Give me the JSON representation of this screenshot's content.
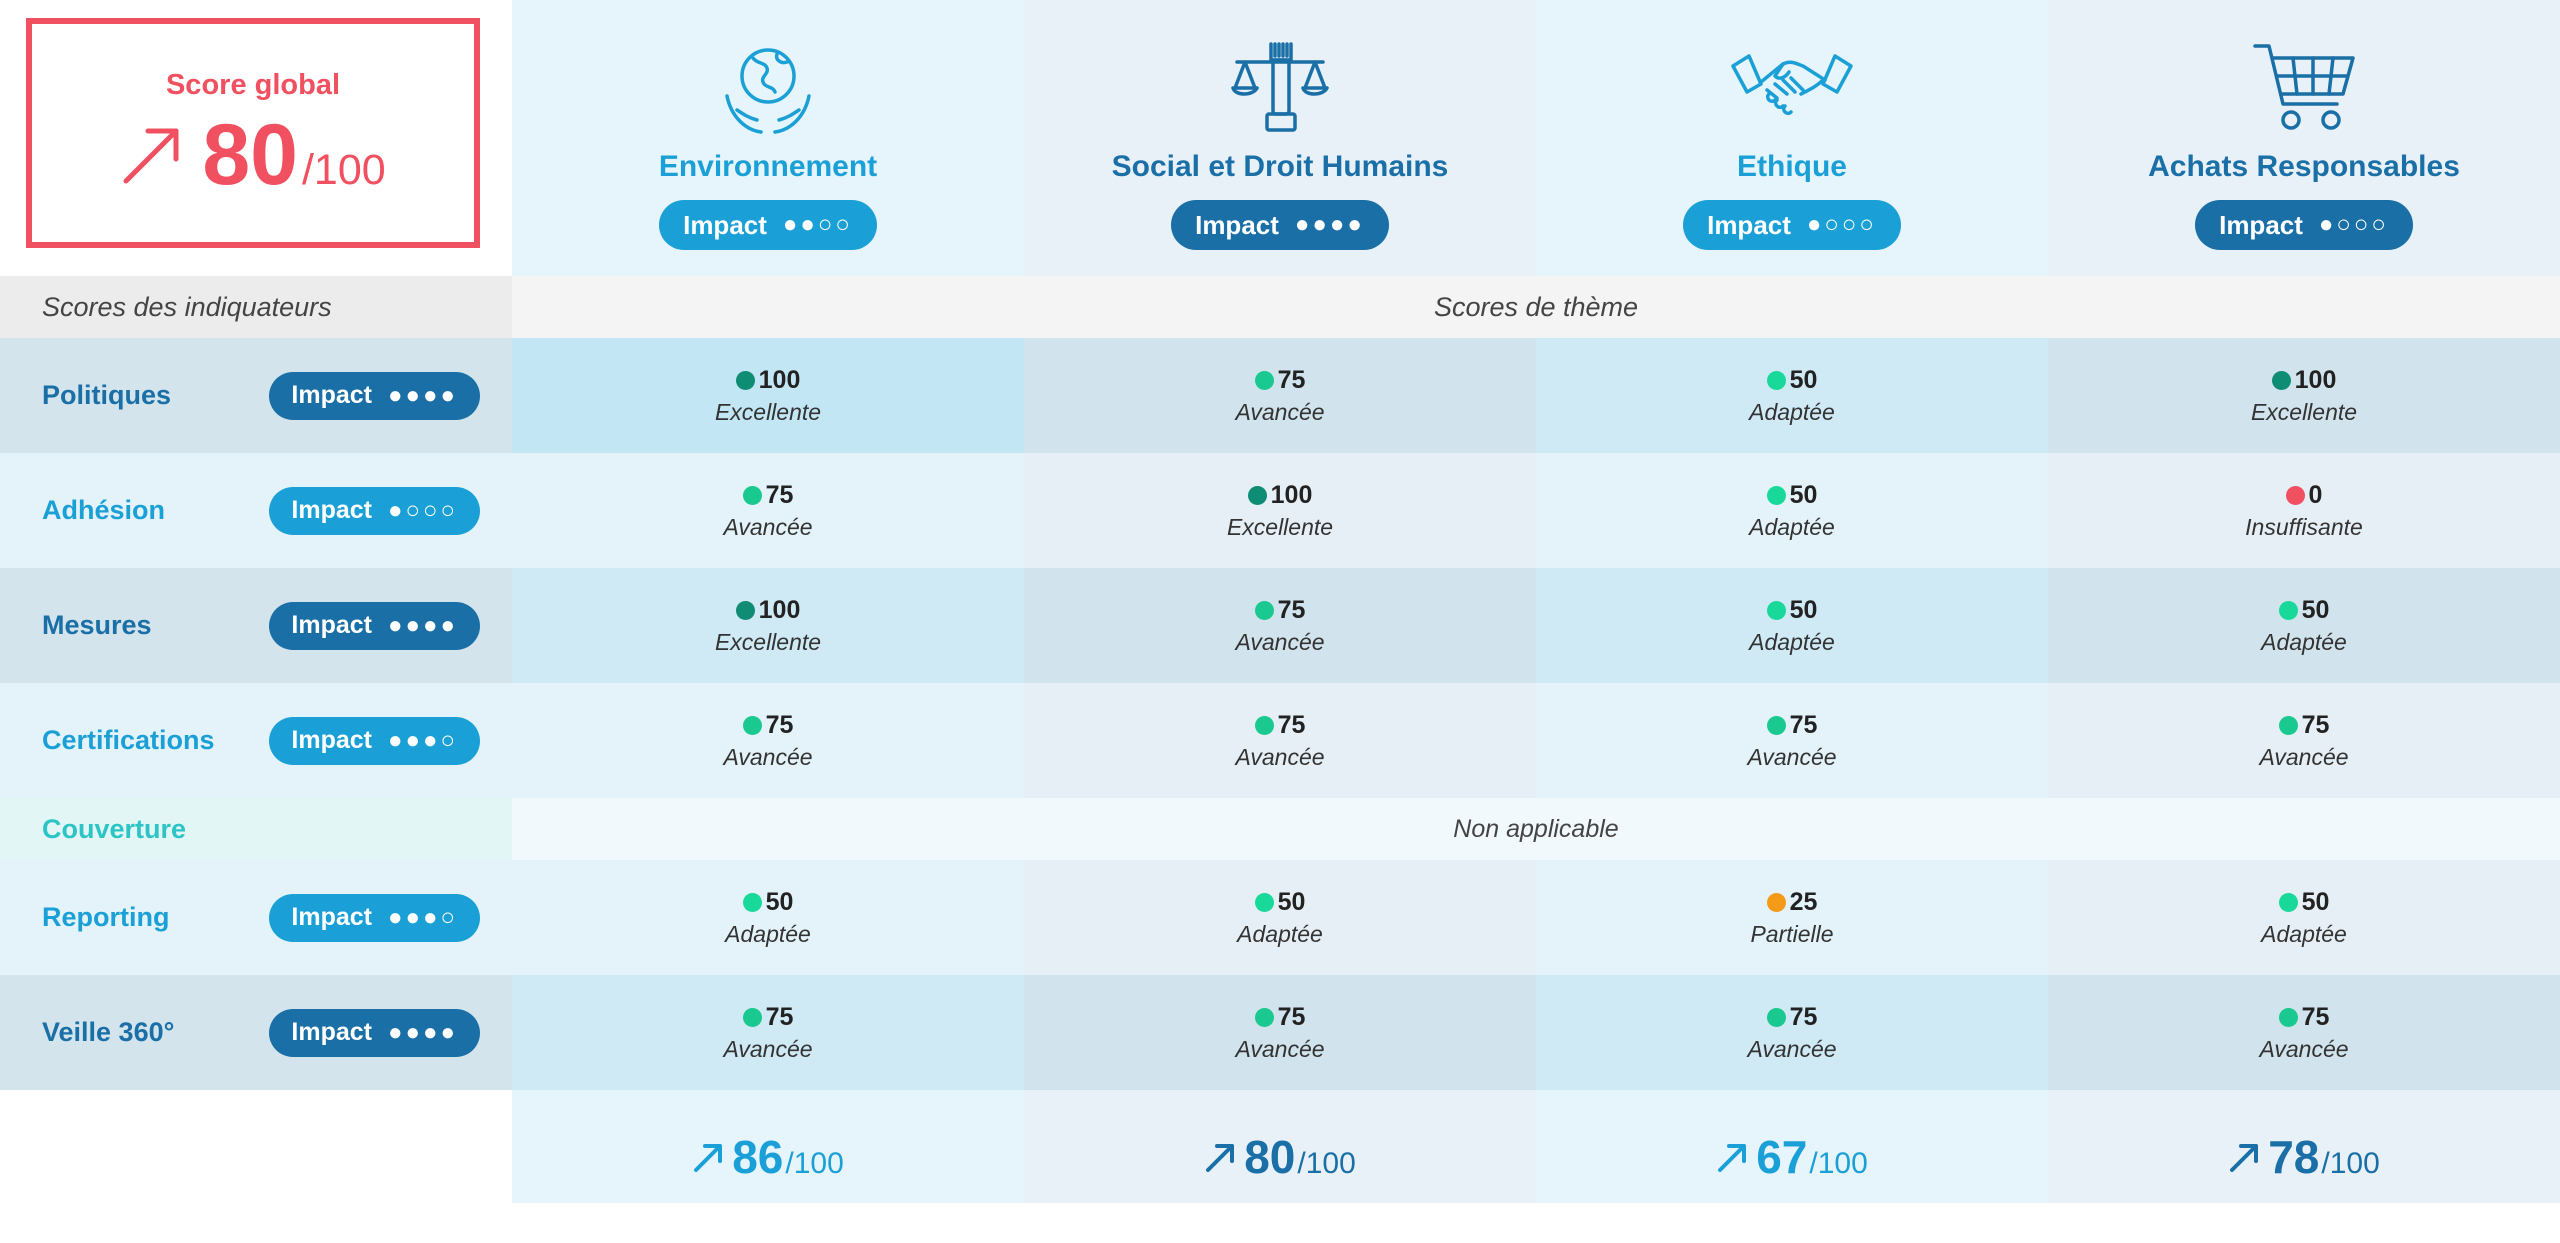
{
  "global": {
    "label": "Score global",
    "score": "80",
    "denominator": "/100",
    "color": "#f0505f"
  },
  "themes": [
    {
      "title": "Environnement",
      "icon": "globe-hands-icon",
      "impact_label": "Impact",
      "impact_dots": "●●○○",
      "color": "#1aa0d6"
    },
    {
      "title": "Social et Droit Humains",
      "icon": "justice-scale-fist-icon",
      "impact_label": "Impact",
      "impact_dots": "●●●●",
      "color": "#1a6fa6"
    },
    {
      "title": "Ethique",
      "icon": "handshake-icon",
      "impact_label": "Impact",
      "impact_dots": "●○○○",
      "color": "#1aa0d6"
    },
    {
      "title": "Achats Responsables",
      "icon": "shopping-cart-icon",
      "impact_label": "Impact",
      "impact_dots": "●○○○",
      "color": "#1a6fa6"
    }
  ],
  "band": {
    "left": "Scores des indiquateurs",
    "main": "Scores de thème"
  },
  "coverage": {
    "label": "Couverture",
    "value": "Non applicable"
  },
  "rows": [
    {
      "label": "Politiques",
      "impact_label": "Impact",
      "impact_dots": "●●●●",
      "cells": [
        {
          "score": "100",
          "level": "Excellente"
        },
        {
          "score": "75",
          "level": "Avancée"
        },
        {
          "score": "50",
          "level": "Adaptée"
        },
        {
          "score": "100",
          "level": "Excellente"
        }
      ]
    },
    {
      "label": "Adhésion",
      "impact_label": "Impact",
      "impact_dots": "●○○○",
      "cells": [
        {
          "score": "75",
          "level": "Avancée"
        },
        {
          "score": "100",
          "level": "Excellente"
        },
        {
          "score": "50",
          "level": "Adaptée"
        },
        {
          "score": "0",
          "level": "Insuffisante"
        }
      ]
    },
    {
      "label": "Mesures",
      "impact_label": "Impact",
      "impact_dots": "●●●●",
      "cells": [
        {
          "score": "100",
          "level": "Excellente"
        },
        {
          "score": "75",
          "level": "Avancée"
        },
        {
          "score": "50",
          "level": "Adaptée"
        },
        {
          "score": "50",
          "level": "Adaptée"
        }
      ]
    },
    {
      "label": "Certifications",
      "impact_label": "Impact",
      "impact_dots": "●●●○",
      "cells": [
        {
          "score": "75",
          "level": "Avancée"
        },
        {
          "score": "75",
          "level": "Avancée"
        },
        {
          "score": "75",
          "level": "Avancée"
        },
        {
          "score": "75",
          "level": "Avancée"
        }
      ]
    },
    {
      "label": "Reporting",
      "impact_label": "Impact",
      "impact_dots": "●●●○",
      "cells": [
        {
          "score": "50",
          "level": "Adaptée"
        },
        {
          "score": "50",
          "level": "Adaptée"
        },
        {
          "score": "25",
          "level": "Partielle"
        },
        {
          "score": "50",
          "level": "Adaptée"
        }
      ]
    },
    {
      "label": "Veille 360°",
      "impact_label": "Impact",
      "impact_dots": "●●●●",
      "cells": [
        {
          "score": "75",
          "level": "Avancée"
        },
        {
          "score": "75",
          "level": "Avancée"
        },
        {
          "score": "75",
          "level": "Avancée"
        },
        {
          "score": "75",
          "level": "Avancée"
        }
      ]
    }
  ],
  "totals": [
    {
      "score": "86",
      "denominator": "/100"
    },
    {
      "score": "80",
      "denominator": "/100"
    },
    {
      "score": "67",
      "denominator": "/100"
    },
    {
      "score": "78",
      "denominator": "/100"
    }
  ],
  "level_colors": {
    "Excellente": "#0e8c74",
    "Avancée": "#19c98f",
    "Adaptée": "#19d99a",
    "Partielle": "#f59a17",
    "Insuffisante": "#f0505f"
  },
  "colors": {
    "dark_blue": "#1a6fa6",
    "light_blue": "#1aa0d6",
    "teal": "#2cc4c4"
  }
}
